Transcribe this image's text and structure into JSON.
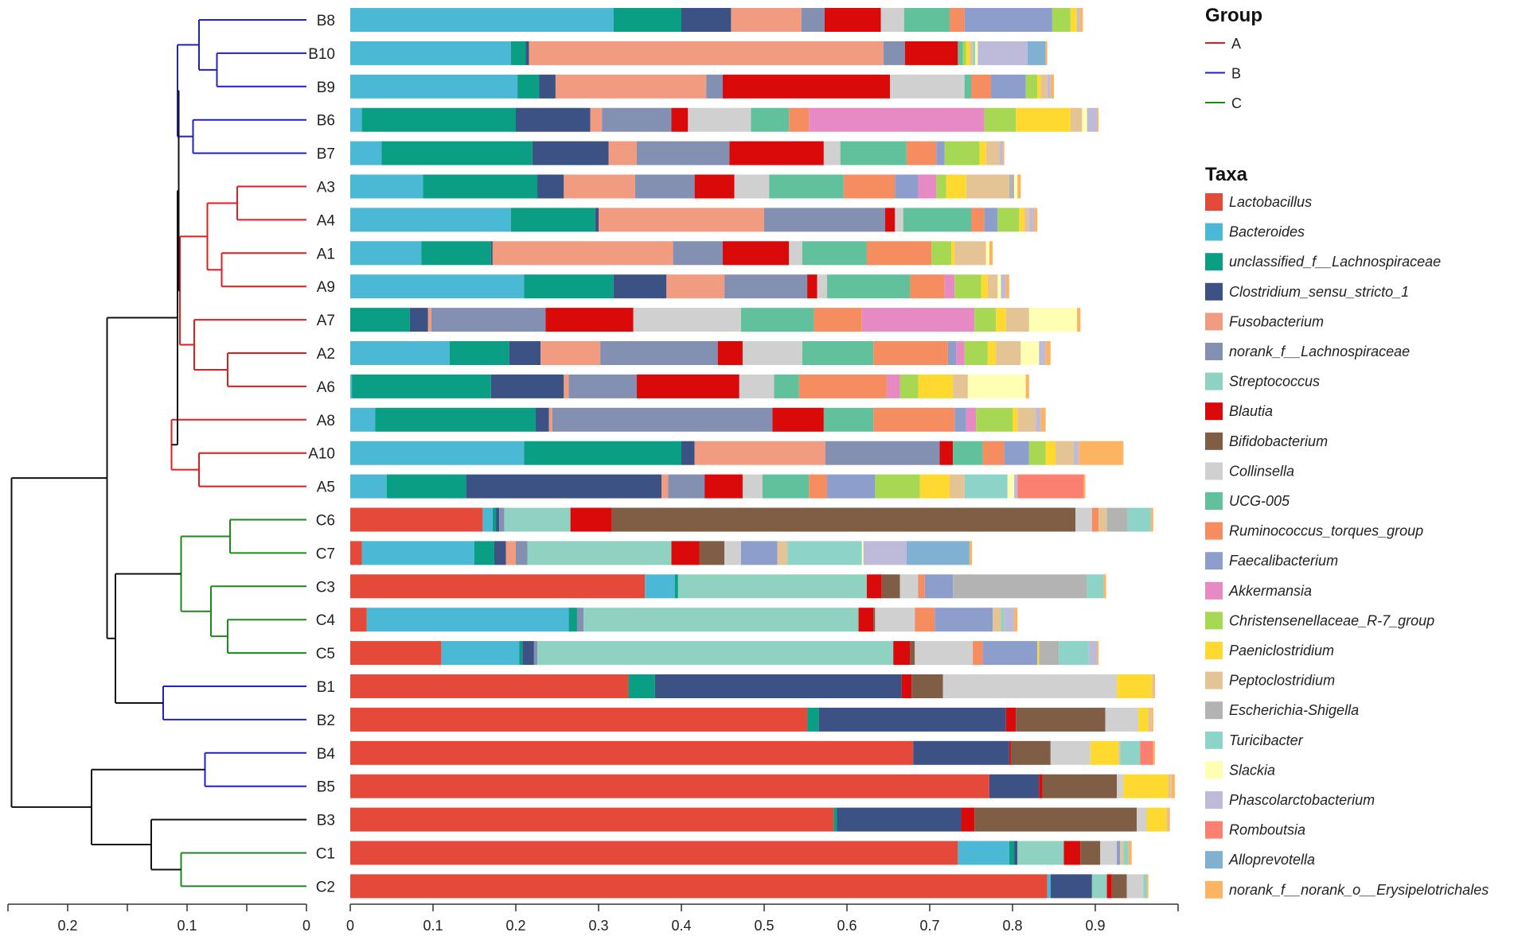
{
  "chart_data": {
    "type": "bar",
    "orientation": "horizontal",
    "stacked": true,
    "description": "Hierarchical clustering dendrogram with stacked relative-abundance bars",
    "samples": [
      "B8",
      "B10",
      "B9",
      "B6",
      "B7",
      "A3",
      "A4",
      "A1",
      "A9",
      "A7",
      "A2",
      "A6",
      "A8",
      "A10",
      "A5",
      "C6",
      "C7",
      "C3",
      "C4",
      "C5",
      "B1",
      "B2",
      "B4",
      "B5",
      "B3",
      "C1",
      "C2"
    ],
    "taxa": [
      {
        "name": "Lactobacillus",
        "color": "#e5493a"
      },
      {
        "name": "Bacteroides",
        "color": "#4bb8d6"
      },
      {
        "name": "unclassified_f__Lachnospiraceae",
        "color": "#0a9e85"
      },
      {
        "name": "Clostridium_sensu_stricto_1",
        "color": "#3c5285"
      },
      {
        "name": "Fusobacterium",
        "color": "#f19b80"
      },
      {
        "name": "norank_f__Lachnospiraceae",
        "color": "#8490b2"
      },
      {
        "name": "Streptococcus",
        "color": "#90d2c2"
      },
      {
        "name": "Blautia",
        "color": "#db0a0a"
      },
      {
        "name": "Bifidobacterium",
        "color": "#7f5e45"
      },
      {
        "name": "Collinsella",
        "color": "#d0d0d0"
      },
      {
        "name": "UCG-005",
        "color": "#62c19d"
      },
      {
        "name": "Ruminococcus_torques_group",
        "color": "#f58d61"
      },
      {
        "name": "Faecalibacterium",
        "color": "#8d9dcc"
      },
      {
        "name": "Akkermansia",
        "color": "#e78ac3"
      },
      {
        "name": "Christensenellaceae_R-7_group",
        "color": "#a6d853"
      },
      {
        "name": "Paeniclostridium",
        "color": "#ffd92f"
      },
      {
        "name": "Peptoclostridium",
        "color": "#e4c494"
      },
      {
        "name": "Escherichia-Shigella",
        "color": "#b3b3b3"
      },
      {
        "name": "Turicibacter",
        "color": "#8dd3c7"
      },
      {
        "name": "Slackia",
        "color": "#ffffb3"
      },
      {
        "name": "Phascolarctobacterium",
        "color": "#bebada"
      },
      {
        "name": "Romboutsia",
        "color": "#fb8072"
      },
      {
        "name": "Alloprevotella",
        "color": "#80b1d3"
      },
      {
        "name": "norank_f__norank_o__Erysipelotrichales",
        "color": "#fdb462"
      }
    ],
    "abundance": {
      "B8": [
        0,
        0.318,
        0.082,
        0.06,
        0.085,
        0.028,
        0,
        0.068,
        0,
        0.028,
        0.055,
        0.018,
        0.106,
        0,
        0.022,
        0.008,
        0,
        0,
        0,
        0,
        0.003,
        0,
        0,
        0.004
      ],
      "B10": [
        0,
        0.194,
        0.018,
        0.004,
        0.428,
        0.026,
        0,
        0.064,
        0,
        0,
        0.006,
        0,
        0,
        0,
        0.004,
        0.004,
        0.004,
        0,
        0.003,
        0.003,
        0.06,
        0,
        0.022,
        0.002
      ],
      "B9": [
        0,
        0.202,
        0.026,
        0.02,
        0.182,
        0.02,
        0,
        0.202,
        0,
        0.09,
        0.008,
        0.024,
        0.042,
        0,
        0.014,
        0.004,
        0.008,
        0,
        0,
        0,
        0.004,
        0,
        0,
        0.004
      ],
      "B6": [
        0,
        0.014,
        0.186,
        0.09,
        0.014,
        0.084,
        0,
        0.02,
        0,
        0.076,
        0.046,
        0.024,
        0,
        0.212,
        0.038,
        0.066,
        0.014,
        0,
        0,
        0.006,
        0.012,
        0,
        0,
        0.002
      ],
      "B7": [
        0,
        0.038,
        0.182,
        0.092,
        0.034,
        0.112,
        0,
        0.114,
        0,
        0.02,
        0.08,
        0.036,
        0.01,
        0,
        0.042,
        0.008,
        0.016,
        0,
        0,
        0,
        0.004,
        0,
        0,
        0.002
      ],
      "A3": [
        0,
        0.088,
        0.138,
        0.032,
        0.086,
        0.072,
        0,
        0.048,
        0,
        0.042,
        0.09,
        0.062,
        0.028,
        0.022,
        0.012,
        0.024,
        0.052,
        0.006,
        0,
        0.004,
        0,
        0,
        0,
        0.004
      ],
      "A4": [
        0,
        0.194,
        0.102,
        0.004,
        0.2,
        0.146,
        0,
        0.012,
        0,
        0.01,
        0.082,
        0.016,
        0.016,
        0,
        0.026,
        0.006,
        0.006,
        0,
        0,
        0,
        0.006,
        0,
        0,
        0.004
      ],
      "A1": [
        0,
        0.086,
        0.084,
        0.002,
        0.218,
        0.06,
        0,
        0.08,
        0,
        0.016,
        0.078,
        0.078,
        0,
        0,
        0.024,
        0.004,
        0.038,
        0,
        0,
        0.004,
        0,
        0,
        0,
        0.004
      ],
      "A9": [
        0,
        0.21,
        0.108,
        0.064,
        0.07,
        0.1,
        0,
        0.012,
        0,
        0.012,
        0.1,
        0.042,
        0,
        0.012,
        0.032,
        0.008,
        0.012,
        0,
        0,
        0.004,
        0.006,
        0,
        0,
        0.004
      ],
      "A7": [
        0,
        0,
        0.072,
        0.022,
        0.004,
        0.138,
        0,
        0.106,
        0,
        0.13,
        0.088,
        0.058,
        0,
        0.136,
        0.026,
        0.012,
        0.028,
        0,
        0,
        0.058,
        0,
        0,
        0,
        0.004
      ],
      "A2": [
        0,
        0.12,
        0.072,
        0.038,
        0.072,
        0.142,
        0,
        0.03,
        0,
        0.072,
        0.086,
        0.09,
        0.01,
        0.01,
        0.028,
        0.01,
        0.03,
        0,
        0,
        0.022,
        0.008,
        0,
        0,
        0.006
      ],
      "A6": [
        0,
        0.002,
        0.168,
        0.088,
        0.006,
        0.082,
        0,
        0.124,
        0,
        0.042,
        0.03,
        0.106,
        0,
        0.016,
        0.022,
        0.042,
        0.018,
        0,
        0,
        0.07,
        0,
        0,
        0,
        0.004
      ],
      "A8": [
        0,
        0.03,
        0.194,
        0.016,
        0.004,
        0.266,
        0,
        0.062,
        0,
        0,
        0.06,
        0.098,
        0.014,
        0.012,
        0.044,
        0.006,
        0.022,
        0,
        0,
        0,
        0.006,
        0,
        0,
        0.006
      ],
      "A10": [
        0,
        0.21,
        0.19,
        0.016,
        0.158,
        0.138,
        0,
        0.016,
        0,
        0,
        0.036,
        0.026,
        0.03,
        0,
        0.02,
        0.012,
        0.022,
        0,
        0,
        0,
        0.006,
        0,
        0,
        0.054
      ],
      "A5": [
        0,
        0.044,
        0.096,
        0.236,
        0.008,
        0.044,
        0,
        0.046,
        0,
        0.024,
        0.056,
        0.022,
        0.058,
        0,
        0.054,
        0.036,
        0.018,
        0,
        0.052,
        0.008,
        0.004,
        0.08,
        0,
        0.002
      ],
      "C6": [
        0.16,
        0.012,
        0.004,
        0.004,
        0,
        0.006,
        0.08,
        0.05,
        0.56,
        0.02,
        0,
        0.008,
        0,
        0,
        0,
        0,
        0.01,
        0.025,
        0.028,
        0,
        0,
        0,
        0,
        0.003
      ],
      "C7": [
        0.014,
        0.136,
        0.024,
        0.014,
        0.012,
        0.014,
        0.174,
        0.034,
        0.03,
        0.02,
        0,
        0,
        0.044,
        0,
        0,
        0,
        0.012,
        0,
        0.09,
        0.002,
        0.052,
        0,
        0.076,
        0.003
      ],
      "C3": [
        0.356,
        0.036,
        0.004,
        0,
        0,
        0,
        0.228,
        0.018,
        0.022,
        0.022,
        0,
        0.008,
        0.034,
        0,
        0,
        0,
        0,
        0.162,
        0.02,
        0,
        0,
        0,
        0,
        0.003
      ],
      "C4": [
        0.02,
        0.244,
        0.01,
        0,
        0,
        0.008,
        0.332,
        0.018,
        0.002,
        0.048,
        0,
        0.024,
        0.07,
        0,
        0,
        0,
        0.01,
        0,
        0.004,
        0,
        0.012,
        0,
        0,
        0.004
      ],
      "C5": [
        0.11,
        0.094,
        0.004,
        0.014,
        0,
        0.004,
        0.43,
        0.02,
        0.006,
        0.07,
        0,
        0.012,
        0.066,
        0,
        0,
        0.002,
        0,
        0.024,
        0.036,
        0,
        0.01,
        0,
        0,
        0.002
      ],
      "B1": [
        0.336,
        0,
        0.032,
        0.298,
        0,
        0,
        0,
        0.012,
        0.038,
        0.21,
        0,
        0,
        0,
        0,
        0,
        0.042,
        0.002,
        0,
        0,
        0,
        0,
        0,
        0,
        0.002
      ],
      "B2": [
        0.552,
        0,
        0.014,
        0.226,
        0,
        0,
        0,
        0.012,
        0.108,
        0.04,
        0,
        0,
        0,
        0,
        0,
        0.012,
        0.004,
        0,
        0,
        0,
        0,
        0,
        0,
        0.002
      ],
      "B4": [
        0.68,
        0,
        0,
        0.116,
        0,
        0,
        0,
        0.002,
        0.048,
        0.048,
        0,
        0,
        0,
        0,
        0,
        0.034,
        0.002,
        0,
        0.024,
        0,
        0,
        0.016,
        0,
        0.002
      ],
      "B5": [
        0.772,
        0,
        0,
        0.06,
        0,
        0,
        0,
        0.004,
        0.09,
        0.008,
        0,
        0,
        0,
        0,
        0,
        0.054,
        0.004,
        0,
        0,
        0,
        0,
        0,
        0,
        0.004
      ],
      "B3": [
        0.584,
        0,
        0.004,
        0.15,
        0,
        0,
        0,
        0.016,
        0.196,
        0.012,
        0,
        0,
        0,
        0,
        0,
        0.024,
        0.002,
        0,
        0,
        0,
        0,
        0,
        0,
        0.002
      ],
      "C1": [
        0.734,
        0.062,
        0.006,
        0.004,
        0,
        0,
        0.056,
        0.02,
        0.024,
        0.02,
        0,
        0,
        0.004,
        0,
        0,
        0,
        0.004,
        0,
        0.006,
        0,
        0,
        0,
        0,
        0.004
      ],
      "C2": [
        0.842,
        0.004,
        0,
        0.05,
        0,
        0,
        0.018,
        0.006,
        0.018,
        0.02,
        0,
        0,
        0,
        0,
        0,
        0,
        0,
        0,
        0.004,
        0,
        0,
        0,
        0,
        0.002
      ]
    },
    "bar_axis": {
      "ticks": [
        "0",
        "0.1",
        "0.2",
        "0.3",
        "0.4",
        "0.5",
        "0.6",
        "0.7",
        "0.8",
        "0.9"
      ],
      "range": [
        0,
        1
      ]
    },
    "tree_axis": {
      "ticks": [
        "0.2",
        "0.1",
        "0"
      ],
      "range": [
        0.25,
        0
      ]
    },
    "tree": [
      "((((((B8,(B10,B9)),(B6,B7)),(((A3,A4),(A1,A9)),(A7,(A2,A6)))),((A8,(A10,A5)))),(((C6,C7),(C3,(C4,C5))),(B1,B2))),((B4,B5),(B3,(C1,C2))))"
    ],
    "group_legend": {
      "title": "Group",
      "items": [
        {
          "label": "A",
          "color": "#e41a1c"
        },
        {
          "label": "B",
          "color": "#1f1fcc"
        },
        {
          "label": "C",
          "color": "#1a8a1a"
        }
      ]
    },
    "taxa_legend_title": "Taxa"
  }
}
